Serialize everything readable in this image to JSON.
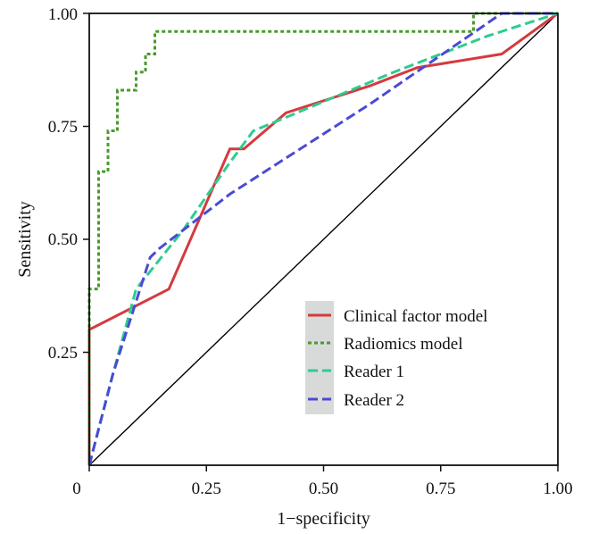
{
  "chart_data": {
    "type": "line",
    "title": "",
    "xlabel": "1−specificity",
    "ylabel": "Sensitivity",
    "xlim": [
      0,
      1
    ],
    "ylim": [
      0,
      1
    ],
    "x_ticks": [
      0,
      0.25,
      0.5,
      0.75,
      1.0
    ],
    "x_tick_labels": [
      "0",
      "0.25",
      "0.50",
      "0.75",
      "1.00"
    ],
    "y_ticks": [
      0.25,
      0.5,
      0.75,
      1.0
    ],
    "y_tick_labels": [
      "0.25",
      "0.50",
      "0.75",
      "1.00"
    ],
    "grid": false,
    "legend_position": "bottom-right",
    "reference_line": {
      "x": [
        0,
        1
      ],
      "y": [
        0,
        1
      ],
      "color": "#000000"
    },
    "series": [
      {
        "name": "Clinical factor model",
        "color": "#d43a3f",
        "dash": "solid",
        "x": [
          0,
          0,
          0.17,
          0.3,
          0.33,
          0.42,
          0.6,
          0.7,
          0.88,
          1.0
        ],
        "y": [
          0,
          0.3,
          0.39,
          0.7,
          0.7,
          0.78,
          0.84,
          0.88,
          0.91,
          1.0
        ]
      },
      {
        "name": "Radiomics model",
        "color": "#4a9a2c",
        "dash": "dotted",
        "x": [
          0,
          0,
          0.02,
          0.02,
          0.04,
          0.04,
          0.06,
          0.06,
          0.1,
          0.1,
          0.12,
          0.12,
          0.14,
          0.14,
          0.82,
          0.82,
          0.9,
          1.0
        ],
        "y": [
          0,
          0.39,
          0.39,
          0.65,
          0.65,
          0.74,
          0.74,
          0.83,
          0.83,
          0.87,
          0.87,
          0.91,
          0.91,
          0.96,
          0.96,
          1.0,
          1.0,
          1.0
        ]
      },
      {
        "name": "Reader 1",
        "color": "#2ecc8f",
        "dash": "dashed",
        "x": [
          0,
          0.05,
          0.1,
          0.2,
          0.3,
          0.35,
          0.42,
          0.65,
          0.85,
          1.0
        ],
        "y": [
          0,
          0.2,
          0.39,
          0.52,
          0.67,
          0.74,
          0.77,
          0.87,
          0.95,
          1.0
        ]
      },
      {
        "name": "Reader 2",
        "color": "#4a4ad4",
        "dash": "dashed",
        "x": [
          0,
          0.05,
          0.13,
          0.15,
          0.3,
          0.42,
          0.6,
          0.88,
          1.0
        ],
        "y": [
          0,
          0.2,
          0.46,
          0.48,
          0.6,
          0.68,
          0.8,
          1.0,
          1.0
        ]
      }
    ]
  }
}
